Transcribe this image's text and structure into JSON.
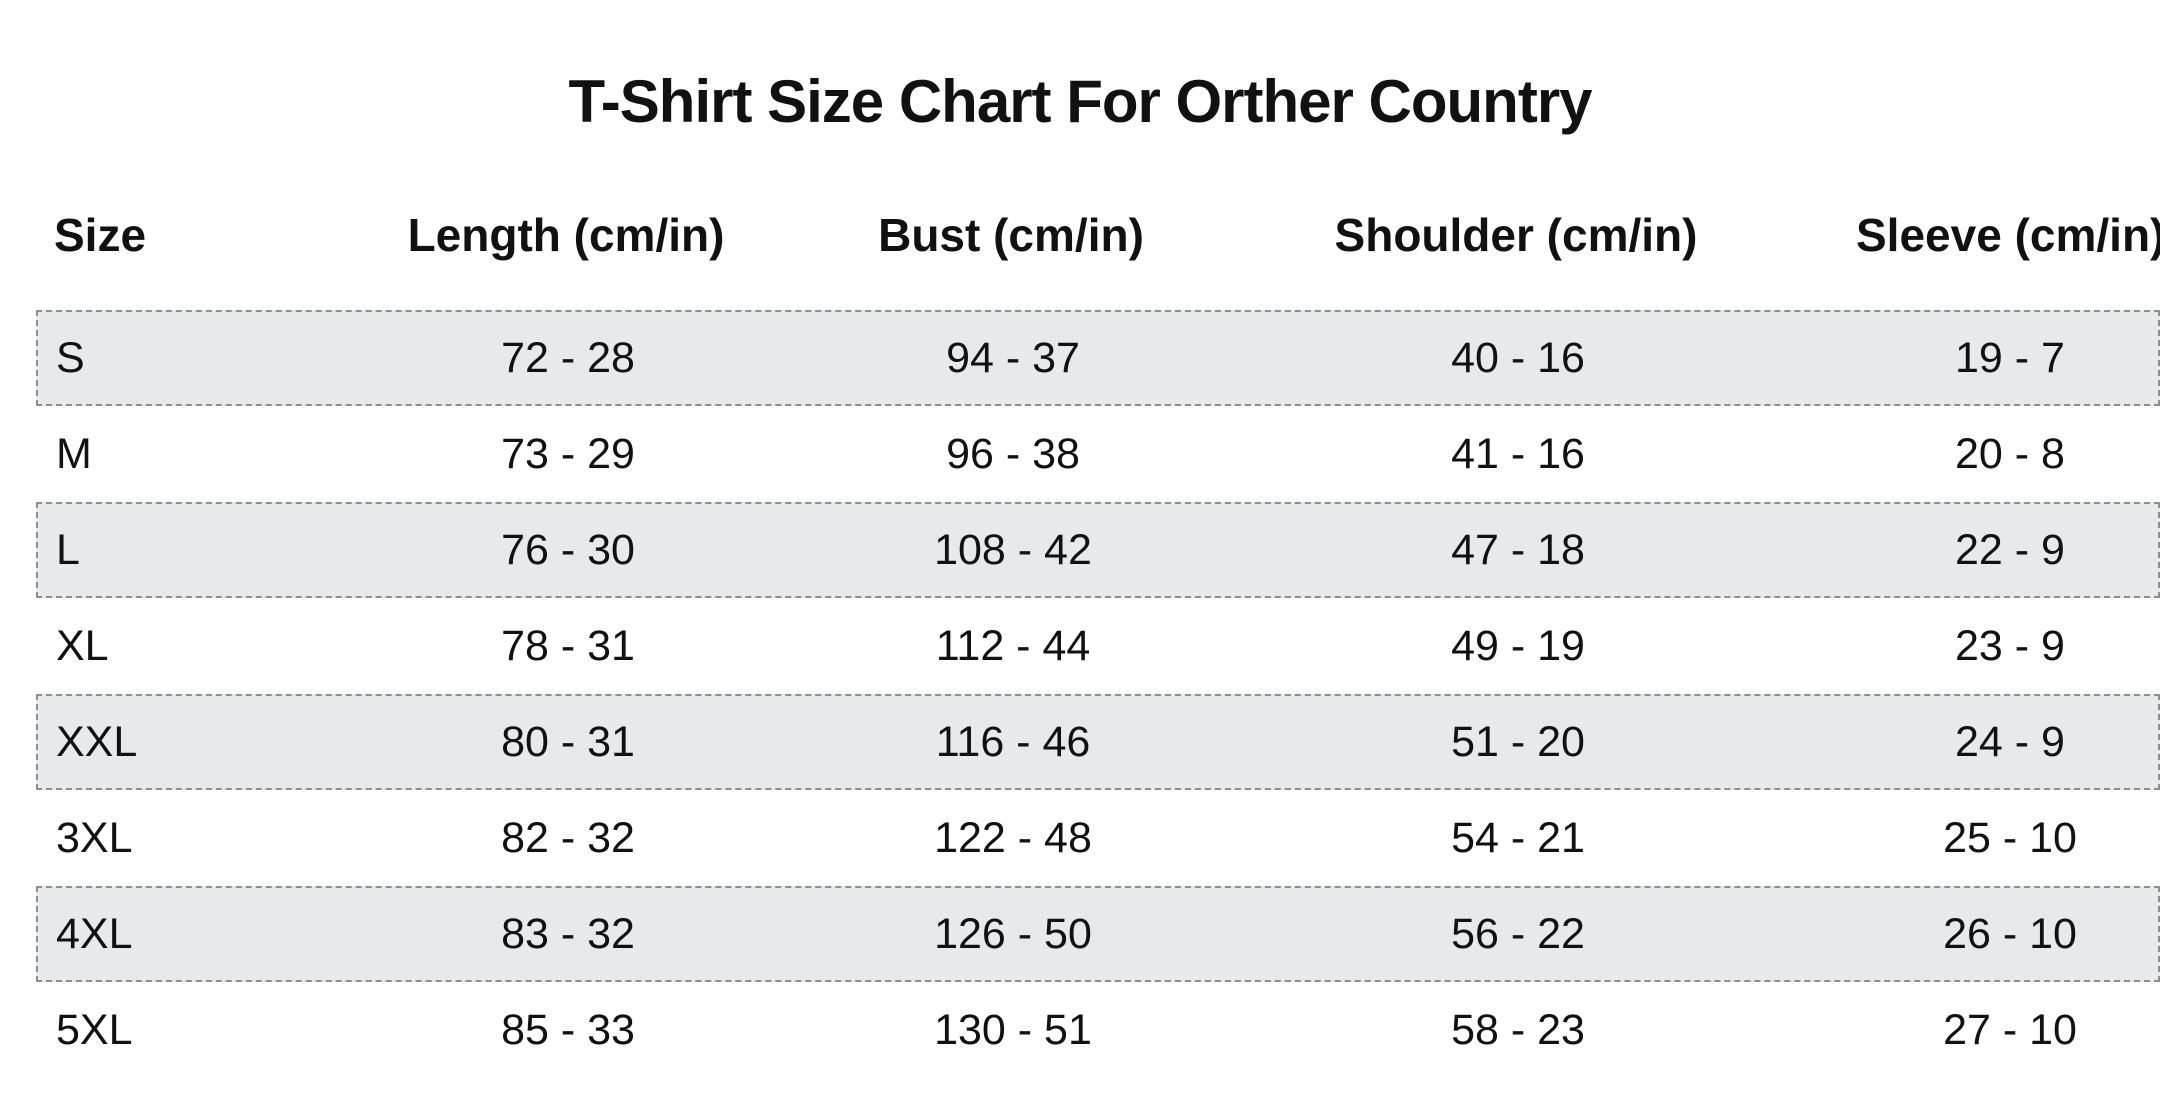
{
  "title": "T-Shirt Size Chart For Orther Country",
  "table": {
    "columns": [
      "Size",
      "Length (cm/in)",
      "Bust (cm/in)",
      "Shoulder (cm/in)",
      "Sleeve (cm/in)"
    ],
    "rows": [
      {
        "size": "S",
        "length": "72 - 28",
        "bust": "94 - 37",
        "shoulder": "40 - 16",
        "sleeve": "19 - 7",
        "shaded": true
      },
      {
        "size": "M",
        "length": "73 - 29",
        "bust": "96 - 38",
        "shoulder": "41 - 16",
        "sleeve": "20 - 8",
        "shaded": false
      },
      {
        "size": "L",
        "length": "76 - 30",
        "bust": "108 - 42",
        "shoulder": "47 - 18",
        "sleeve": "22 - 9",
        "shaded": true
      },
      {
        "size": "XL",
        "length": "78 - 31",
        "bust": "112 - 44",
        "shoulder": "49 - 19",
        "sleeve": "23 - 9",
        "shaded": false
      },
      {
        "size": "XXL",
        "length": "80 - 31",
        "bust": "116 - 46",
        "shoulder": "51 - 20",
        "sleeve": "24 - 9",
        "shaded": true
      },
      {
        "size": "3XL",
        "length": "82 - 32",
        "bust": "122 - 48",
        "shoulder": "54 - 21",
        "sleeve": "25 - 10",
        "shaded": false
      },
      {
        "size": "4XL",
        "length": "83 - 32",
        "bust": "126 - 50",
        "shoulder": "56 - 22",
        "sleeve": "26 - 10",
        "shaded": true
      },
      {
        "size": "5XL",
        "length": "85 - 33",
        "bust": "130 - 51",
        "shoulder": "58 - 23",
        "sleeve": "27 - 10",
        "shaded": false
      }
    ]
  },
  "colors": {
    "background": "#ffffff",
    "text": "#111111",
    "row_shade": "#e8e9ea",
    "row_border": "#8e8e8e"
  },
  "chart_data": {
    "type": "table",
    "title": "T-Shirt Size Chart For Orther Country",
    "columns": [
      "Size",
      "Length (cm/in)",
      "Bust (cm/in)",
      "Shoulder (cm/in)",
      "Sleeve (cm/in)"
    ],
    "rows": [
      [
        "S",
        "72 - 28",
        "94 - 37",
        "40 - 16",
        "19 - 7"
      ],
      [
        "M",
        "73 - 29",
        "96 - 38",
        "41 - 16",
        "20 - 8"
      ],
      [
        "L",
        "76 - 30",
        "108 - 42",
        "47 - 18",
        "22 - 9"
      ],
      [
        "XL",
        "78 - 31",
        "112 - 44",
        "49 - 19",
        "23 - 9"
      ],
      [
        "XXL",
        "80 - 31",
        "116 - 46",
        "51 - 20",
        "24 - 9"
      ],
      [
        "3XL",
        "82 - 32",
        "122 - 48",
        "54 - 21",
        "25 - 10"
      ],
      [
        "4XL",
        "83 - 32",
        "126 - 50",
        "56 - 22",
        "26 - 10"
      ],
      [
        "5XL",
        "85 - 33",
        "130 - 51",
        "58 - 23",
        "27 - 10"
      ]
    ],
    "layout": {
      "shaded_row_indices": [
        0,
        2,
        4,
        6
      ],
      "row_style": "dashed-border gray band on shaded rows",
      "header_alignment": "first column left, others center"
    }
  }
}
